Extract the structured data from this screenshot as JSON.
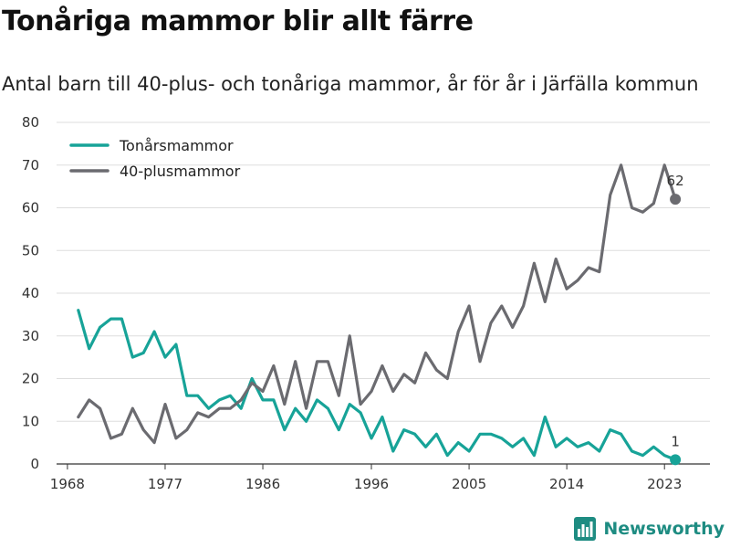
{
  "title": "Tonåriga mammor blir allt färre",
  "subtitle": "Antal barn till 40-plus- och tonåriga mammor, år för år i Järfälla kommun",
  "brand": {
    "name": "Newsworthy",
    "icon": "newsworthy-logo-icon"
  },
  "colors": {
    "teen": "#17a398",
    "forty": "#6b6b70",
    "grid": "#dddddd",
    "axis": "#333333"
  },
  "chart_data": {
    "type": "line",
    "x_ticks": [
      "1968",
      "1977",
      "1986",
      "1996",
      "2005",
      "2014",
      "2023"
    ],
    "y_ticks": [
      "0",
      "10",
      "20",
      "30",
      "40",
      "50",
      "60",
      "70",
      "80"
    ],
    "xlim": [
      1967,
      2025
    ],
    "ylim": [
      0,
      80
    ],
    "grid": true,
    "legend_position": "top-left",
    "x": [
      1969,
      1970,
      1971,
      1972,
      1973,
      1974,
      1975,
      1976,
      1977,
      1978,
      1979,
      1980,
      1981,
      1982,
      1983,
      1984,
      1985,
      1986,
      1987,
      1988,
      1989,
      1990,
      1991,
      1992,
      1993,
      1994,
      1995,
      1996,
      1997,
      1998,
      1999,
      2000,
      2001,
      2002,
      2003,
      2004,
      2005,
      2006,
      2007,
      2008,
      2009,
      2010,
      2011,
      2012,
      2013,
      2014,
      2015,
      2016,
      2017,
      2018,
      2019,
      2020,
      2021,
      2022,
      2023,
      2024
    ],
    "series": [
      {
        "name": "Tonårsmammor",
        "color": "#17a398",
        "end_label": "1",
        "values": [
          36,
          27,
          32,
          34,
          34,
          25,
          26,
          31,
          25,
          28,
          16,
          16,
          13,
          15,
          16,
          13,
          20,
          15,
          15,
          8,
          13,
          10,
          15,
          13,
          8,
          14,
          12,
          6,
          11,
          3,
          8,
          7,
          4,
          7,
          2,
          5,
          3,
          7,
          7,
          6,
          4,
          6,
          2,
          11,
          4,
          6,
          4,
          5,
          3,
          8,
          7,
          3,
          2,
          4,
          2,
          1
        ]
      },
      {
        "name": "40-plusmammor",
        "color": "#6b6b70",
        "end_label": "62",
        "values": [
          11,
          15,
          13,
          6,
          7,
          13,
          8,
          5,
          14,
          6,
          8,
          12,
          11,
          13,
          13,
          15,
          19,
          17,
          23,
          14,
          24,
          13,
          24,
          24,
          16,
          30,
          14,
          17,
          23,
          17,
          21,
          19,
          26,
          22,
          20,
          31,
          37,
          24,
          33,
          37,
          32,
          37,
          47,
          38,
          48,
          41,
          43,
          46,
          45,
          63,
          70,
          60,
          59,
          61,
          70,
          62
        ]
      }
    ]
  }
}
